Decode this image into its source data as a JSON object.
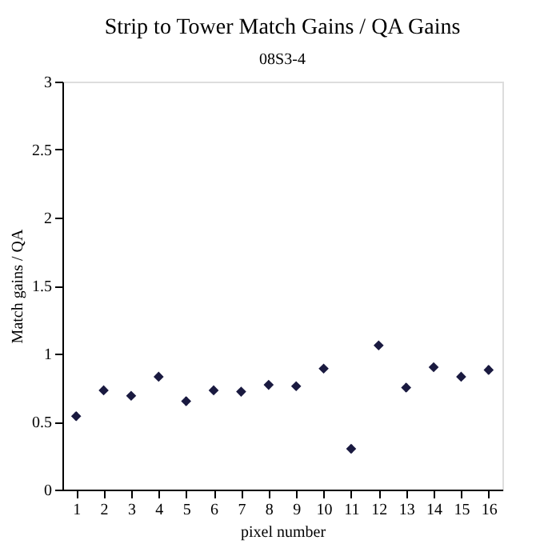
{
  "chart_data": {
    "type": "scatter",
    "title": "Strip to Tower Match Gains / QA Gains",
    "subtitle": "08S3-4",
    "xlabel": "pixel number",
    "ylabel": "Match gains / QA",
    "x": [
      1,
      2,
      3,
      4,
      5,
      6,
      7,
      8,
      9,
      10,
      11,
      12,
      13,
      14,
      15,
      16
    ],
    "series": [
      {
        "color": "#1a1a40",
        "values": [
          0.54,
          0.73,
          0.69,
          0.83,
          0.65,
          0.73,
          0.72,
          0.77,
          0.76,
          0.89,
          0.3,
          1.06,
          0.75,
          0.9,
          0.83,
          0.88
        ],
        "errors": [
          0.03,
          0.01,
          0.01,
          0.01,
          0.03,
          0.02,
          0.02,
          0.01,
          0.01,
          0.01,
          0.03,
          0.01,
          0.03,
          0.01,
          0.01,
          0.03
        ]
      }
    ],
    "xlim": [
      0.5,
      16.5
    ],
    "xticks": [
      1,
      2,
      3,
      4,
      5,
      6,
      7,
      8,
      9,
      10,
      11,
      12,
      13,
      14,
      15,
      16
    ],
    "ylim": [
      0,
      3
    ],
    "yticks": [
      0,
      0.5,
      1,
      1.5,
      2,
      2.5,
      3
    ],
    "marker": "diamond",
    "grid": false
  }
}
